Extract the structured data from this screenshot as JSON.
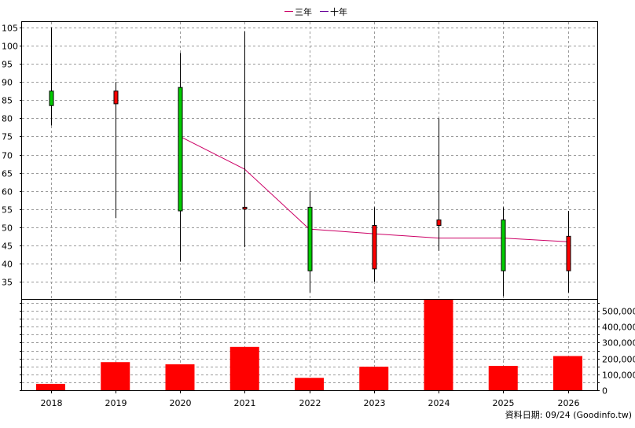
{
  "legend": {
    "items": [
      {
        "label": "三年",
        "color": "#cc0066"
      },
      {
        "label": "十年",
        "color": "#660099"
      }
    ]
  },
  "footer": {
    "source": "資料日期: 09/24  (Goodinfo.tw)"
  },
  "chart_data": [
    {
      "type": "candlestick",
      "title": "",
      "xlabel": "",
      "ylabel": "",
      "ylim": [
        30,
        106
      ],
      "ytick_labels": [
        "105",
        "100",
        "95",
        "90",
        "85",
        "80",
        "75",
        "70",
        "65",
        "60",
        "55",
        "50",
        "45",
        "40",
        "35"
      ],
      "categories": [
        "2018",
        "2019",
        "2020",
        "2021",
        "2022",
        "2023",
        "2024",
        "2025",
        "2026"
      ],
      "candles": [
        {
          "year": "2018",
          "open": 83.5,
          "close": 87.5,
          "high": 105,
          "low": 78,
          "direction": "up"
        },
        {
          "year": "2019",
          "open": 87.5,
          "close": 84,
          "high": 90,
          "low": 52.5,
          "direction": "down"
        },
        {
          "year": "2020",
          "open": 54.5,
          "close": 88.5,
          "high": 98,
          "low": 40.5,
          "direction": "up"
        },
        {
          "year": "2021",
          "open": 55.5,
          "close": 55,
          "high": 104,
          "low": 44.5,
          "direction": "down"
        },
        {
          "year": "2022",
          "open": 38,
          "close": 55.5,
          "high": 60,
          "low": 32,
          "direction": "up"
        },
        {
          "year": "2023",
          "open": 50.5,
          "close": 38.5,
          "high": 55.5,
          "low": 35,
          "direction": "down"
        },
        {
          "year": "2024",
          "open": 52,
          "close": 50.5,
          "high": 80,
          "low": 43.5,
          "direction": "down"
        },
        {
          "year": "2025",
          "open": 38,
          "close": 52,
          "high": 55.5,
          "low": 31,
          "direction": "up"
        },
        {
          "year": "2026",
          "open": 47.5,
          "close": 38,
          "high": 54.5,
          "low": 32,
          "direction": "down"
        }
      ],
      "series": [
        {
          "name": "三年",
          "color": "#cc0066",
          "x": [
            "2020",
            "2021",
            "2022",
            "2023",
            "2024",
            "2025",
            "2026"
          ],
          "values": [
            75,
            66,
            49.5,
            48.2,
            47,
            47,
            46
          ]
        }
      ],
      "up_color": "#00cc00",
      "down_color": "#ff0000",
      "grid": true
    },
    {
      "type": "bar",
      "title": "",
      "xlabel": "",
      "ylabel": "",
      "ylim": [
        0,
        570000
      ],
      "ytick_labels": [
        "500,000",
        "400,000",
        "300,000",
        "200,000",
        "100,000",
        "0"
      ],
      "ytick_values": [
        500000,
        400000,
        300000,
        200000,
        100000,
        0
      ],
      "categories": [
        "2018",
        "2019",
        "2020",
        "2021",
        "2022",
        "2023",
        "2024",
        "2025",
        "2026"
      ],
      "values": [
        40000,
        177000,
        163000,
        273000,
        78000,
        148000,
        573000,
        153000,
        215000
      ],
      "bar_color": "#ff0000",
      "grid": true
    }
  ]
}
